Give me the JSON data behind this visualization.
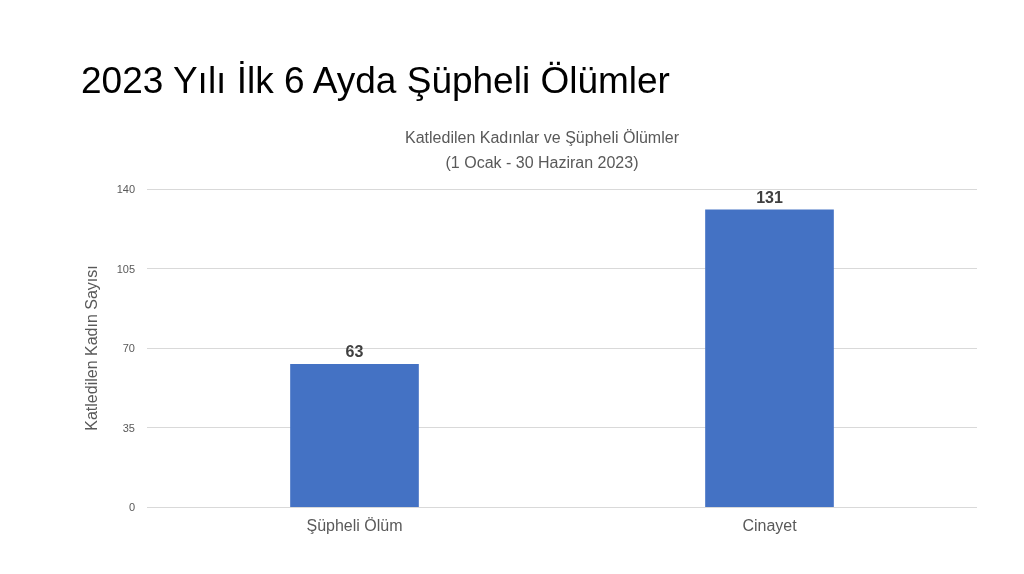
{
  "chart_data": {
    "type": "bar",
    "title": "2023 Yılı İlk 6 Ayda Şüpheli Ölümler",
    "subtitle": "Katledilen Kadınlar ve Şüpheli Ölümler\n(1 Ocak - 30 Haziran 2023)",
    "ylabel": "Katledilen Kadın Sayısı",
    "categories": [
      "Şüpheli Ölüm",
      "Cinayet"
    ],
    "values": [
      63,
      131
    ],
    "color": "#4472c4",
    "ylim": [
      0,
      140
    ],
    "yticks": [
      0,
      35,
      70,
      105,
      140
    ],
    "grid": "y",
    "data_labels": true
  }
}
